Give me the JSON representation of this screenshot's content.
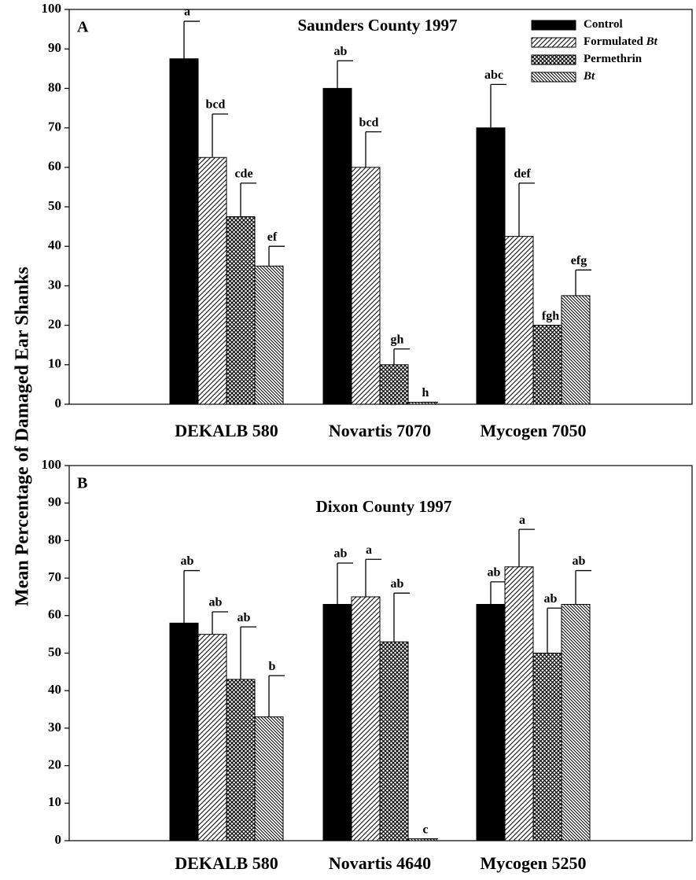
{
  "chart_data": [
    {
      "type": "bar",
      "panel": "A",
      "title": "Saunders County 1997",
      "ylabel": "Mean Percentage of Damaged Ear Shanks",
      "categories": [
        "DEKALB 580",
        "Novartis 7070",
        "Mycogen 7050"
      ],
      "ylim": [
        0,
        100
      ],
      "yticks": [
        0,
        10,
        20,
        30,
        40,
        50,
        60,
        70,
        80,
        90,
        100
      ],
      "legend": "top-right",
      "series": [
        {
          "name": "Control",
          "color": "#000000",
          "pattern": "solid",
          "values": [
            87.5,
            80,
            70
          ],
          "errors": [
            9.5,
            7,
            11
          ],
          "letters": [
            "a",
            "ab",
            "abc"
          ]
        },
        {
          "name": "Formulated Bt",
          "color": "#000000",
          "pattern": "diagonal",
          "values": [
            62.5,
            60,
            42.5
          ],
          "errors": [
            11,
            9,
            13.5
          ],
          "letters": [
            "bcd",
            "bcd",
            "def"
          ]
        },
        {
          "name": "Permethrin",
          "color": "#000000",
          "pattern": "crosshatch",
          "values": [
            47.5,
            10,
            20
          ],
          "errors": [
            8.5,
            4,
            0
          ],
          "letters": [
            "cde",
            "gh",
            "fgh"
          ]
        },
        {
          "name": "Bt",
          "color": "#000000",
          "pattern": "backdiagonal",
          "values": [
            35,
            0.5,
            27.5
          ],
          "errors": [
            5,
            0,
            6.5
          ],
          "letters": [
            "ef",
            "h",
            "efg"
          ]
        }
      ]
    },
    {
      "type": "bar",
      "panel": "B",
      "title": "Dixon County 1997",
      "categories": [
        "DEKALB 580",
        "Novartis 4640",
        "Mycogen 5250"
      ],
      "ylim": [
        0,
        100
      ],
      "yticks": [
        0,
        10,
        20,
        30,
        40,
        50,
        60,
        70,
        80,
        90,
        100
      ],
      "series": [
        {
          "name": "Control",
          "color": "#000000",
          "pattern": "solid",
          "values": [
            58,
            63,
            63
          ],
          "errors": [
            14,
            11,
            6
          ],
          "letters": [
            "ab",
            "ab",
            "ab"
          ]
        },
        {
          "name": "Formulated Bt",
          "color": "#000000",
          "pattern": "diagonal",
          "values": [
            55,
            65,
            73
          ],
          "errors": [
            6,
            10,
            10
          ],
          "letters": [
            "ab",
            "a",
            "a"
          ]
        },
        {
          "name": "Permethrin",
          "color": "#000000",
          "pattern": "crosshatch",
          "values": [
            43,
            53,
            50
          ],
          "errors": [
            14,
            13,
            12
          ],
          "letters": [
            "ab",
            "ab",
            "ab"
          ]
        },
        {
          "name": "Bt",
          "color": "#000000",
          "pattern": "backdiagonal",
          "values": [
            33,
            0.5,
            63
          ],
          "errors": [
            11,
            0,
            9
          ],
          "letters": [
            "b",
            "c",
            "ab"
          ]
        }
      ]
    }
  ]
}
